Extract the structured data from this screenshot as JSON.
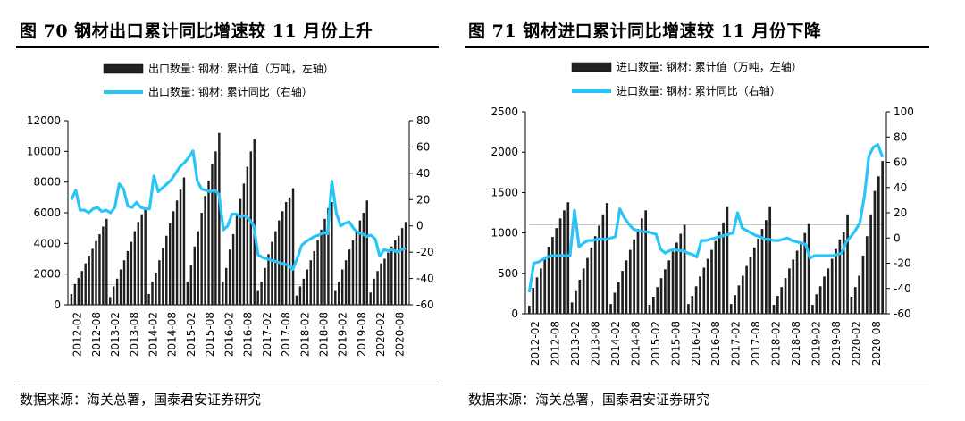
{
  "charts": [
    {
      "id": "left",
      "title": "图 70  钢材出口累计同比增速较 11 月份上升",
      "source": "数据来源：海关总署，国泰君安证券研究",
      "chart_data": {
        "type": "bar",
        "legend": [
          "出口数量: 钢材: 累计值（万吨，左轴）",
          "出口数量: 钢材: 累计同比（右轴）"
        ],
        "legend_placement": "top-center",
        "xlabel": "",
        "ylabel_left": "",
        "ylabel_right": "",
        "y_left_ticks": [
          "0",
          "2000",
          "4000",
          "6000",
          "8000",
          "10000",
          "12000"
        ],
        "y_right_ticks": [
          "-60",
          "-40",
          "-20",
          "0",
          "20",
          "40",
          "60",
          "80"
        ],
        "ylim_left": [
          0,
          12000
        ],
        "ylim_right": [
          -60,
          80
        ],
        "x_tick_labels": [
          "2012-02",
          "2012-08",
          "2013-02",
          "2013-08",
          "2014-02",
          "2014-08",
          "2015-02",
          "2015-08",
          "2016-02",
          "2016-08",
          "2017-02",
          "2017-08",
          "2018-02",
          "2018-08",
          "2019-02",
          "2019-08",
          "2020-02",
          "2020-08"
        ],
        "bar_series": {
          "name": "出口数量: 钢材: 累计值（万吨，左轴）",
          "color": "#222222",
          "values": [
            700,
            1350,
            1750,
            2200,
            2700,
            3200,
            3650,
            4150,
            4600,
            5100,
            5600,
            500,
            1200,
            1700,
            2300,
            2900,
            3500,
            4100,
            4800,
            5400,
            5900,
            6300,
            700,
            1500,
            2100,
            2900,
            3700,
            4500,
            5300,
            6100,
            6800,
            7500,
            8300,
            1500,
            2600,
            3800,
            4800,
            6000,
            7100,
            8100,
            9200,
            10000,
            11200,
            1500,
            2400,
            3600,
            4600,
            5800,
            6900,
            7900,
            9000,
            10000,
            10800,
            900,
            1500,
            2400,
            3300,
            4100,
            4800,
            5500,
            6100,
            6700,
            7000,
            7600,
            600,
            1200,
            1700,
            2300,
            2900,
            3500,
            4200,
            4900,
            5600,
            6300,
            6700,
            900,
            1500,
            2300,
            2900,
            3600,
            4200,
            4800,
            5500,
            6000,
            6800,
            800,
            1700,
            2200,
            2700,
            3000,
            3400,
            3800,
            4200,
            4500,
            5000,
            5400
          ],
          "connector_value": 1300
        },
        "line_series": {
          "name": "出口数量: 钢材: 累计同比（右轴）",
          "color": "#29C5F6",
          "values": [
            20,
            27,
            12,
            12,
            10,
            13,
            14,
            11,
            12,
            10,
            14,
            32,
            28,
            15,
            14,
            18,
            14,
            13,
            13,
            38,
            26,
            29,
            32,
            35,
            40,
            45,
            48,
            52,
            57,
            34,
            28,
            27,
            26,
            27,
            24,
            -3,
            0,
            9,
            9,
            7,
            8,
            5,
            0,
            -22,
            -24,
            -25,
            -26,
            -27,
            -28,
            -29,
            -30,
            -33,
            -25,
            -15,
            -12,
            -10,
            -8,
            -7,
            -5,
            -6,
            34,
            10,
            0,
            2,
            3,
            -2,
            -5,
            -6,
            -8,
            -7,
            -10,
            -23,
            -18,
            -19,
            -18,
            -20,
            -18,
            -17
          ]
        }
      }
    },
    {
      "id": "right",
      "title": "图 71  钢材进口累计同比增速较 11 月份下降",
      "source": "数据来源：海关总署，国泰君安证券研究",
      "chart_data": {
        "type": "bar",
        "legend": [
          "进口数量: 钢材: 累计值（万吨，左轴）",
          "进口数量: 钢材: 累计同比（右轴）"
        ],
        "legend_placement": "top-center",
        "xlabel": "",
        "ylabel_left": "",
        "ylabel_right": "",
        "y_left_ticks": [
          "0",
          "500",
          "1000",
          "1500",
          "2000",
          "2500"
        ],
        "y_right_ticks": [
          "-60",
          "-40",
          "-20",
          "0",
          "20",
          "40",
          "60",
          "80",
          "100"
        ],
        "ylim_left": [
          0,
          2500
        ],
        "ylim_right": [
          -60,
          100
        ],
        "x_tick_labels": [
          "2012-02",
          "2012-08",
          "2013-02",
          "2013-08",
          "2014-02",
          "2014-08",
          "2015-02",
          "2015-08",
          "2016-02",
          "2016-08",
          "2017-02",
          "2017-08",
          "2018-02",
          "2018-08",
          "2019-02",
          "2019-08",
          "2020-02",
          "2020-08"
        ],
        "bar_series": {
          "name": "进口数量: 钢材: 累计值（万吨，左轴）",
          "color": "#222222",
          "values": [
            100,
            320,
            450,
            560,
            700,
            830,
            950,
            1060,
            1180,
            1280,
            1380,
            140,
            280,
            420,
            560,
            690,
            820,
            960,
            1090,
            1230,
            1370,
            120,
            260,
            390,
            530,
            660,
            790,
            920,
            1050,
            1180,
            1280,
            110,
            210,
            330,
            440,
            550,
            660,
            770,
            880,
            990,
            1100,
            120,
            220,
            340,
            460,
            570,
            680,
            790,
            900,
            1020,
            1130,
            1320,
            120,
            230,
            350,
            470,
            590,
            700,
            820,
            930,
            1050,
            1160,
            1320,
            110,
            220,
            330,
            440,
            560,
            670,
            780,
            890,
            1000,
            1110,
            110,
            240,
            340,
            460,
            560,
            680,
            800,
            920,
            1010,
            1230,
            210,
            330,
            470,
            720,
            960,
            1230,
            1520,
            1700,
            1890
          ],
          "connector_value": 1100
        },
        "line_series": {
          "name": "进口数量: 钢材: 累计同比（右轴）",
          "color": "#29C5F6",
          "values": [
            -43,
            -20,
            -19,
            -17,
            -15,
            -14,
            -14,
            -14,
            -14,
            -14,
            22,
            -7,
            -4,
            -2,
            -2,
            -1,
            -1,
            -1,
            0,
            1,
            23,
            16,
            11,
            7,
            6,
            5,
            5,
            4,
            3,
            -9,
            -12,
            -10,
            -9,
            -10,
            -10,
            -12,
            -13,
            -15,
            -2,
            -2,
            -1,
            0,
            1,
            2,
            3,
            4,
            20,
            8,
            6,
            4,
            2,
            1,
            -1,
            -1,
            -2,
            -2,
            -1,
            0,
            -2,
            -3,
            -4,
            -5,
            -16,
            -14,
            -14,
            -14,
            -14,
            -14,
            -13,
            -12,
            -3,
            1,
            6,
            12,
            33,
            65,
            72,
            74,
            64
          ]
        }
      }
    }
  ]
}
